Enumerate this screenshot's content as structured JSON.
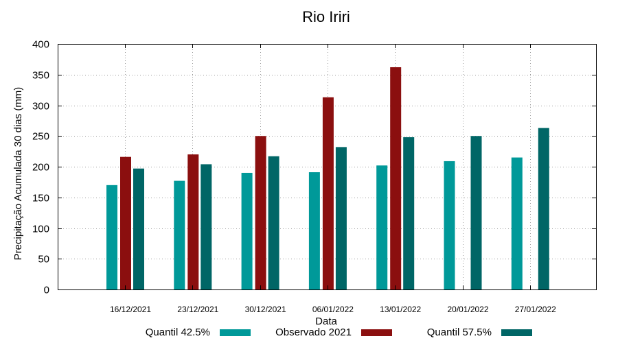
{
  "chart_data": {
    "type": "bar",
    "title": "Rio Iriri",
    "xlabel": "Data",
    "ylabel": "Precipitação Acumulada 30 dias (mm)",
    "ylim": [
      0,
      400
    ],
    "yticks": [
      0,
      50,
      100,
      150,
      200,
      250,
      300,
      350,
      400
    ],
    "grid": true,
    "legend_position": "bottom",
    "categories": [
      "16/12/2021",
      "23/12/2021",
      "30/12/2021",
      "06/01/2022",
      "13/01/2022",
      "20/01/2022",
      "27/01/2022"
    ],
    "series": [
      {
        "name": "Quantil 42.5%",
        "color": "#009999",
        "values": [
          170,
          177,
          190,
          191,
          202,
          209,
          215
        ]
      },
      {
        "name": "Observado 2021",
        "color": "#8b0f0f",
        "values": [
          216,
          220,
          250,
          313,
          362,
          null,
          null
        ]
      },
      {
        "name": "Quantil 57.5%",
        "color": "#006666",
        "values": [
          197,
          204,
          217,
          232,
          248,
          250,
          263
        ]
      }
    ]
  }
}
